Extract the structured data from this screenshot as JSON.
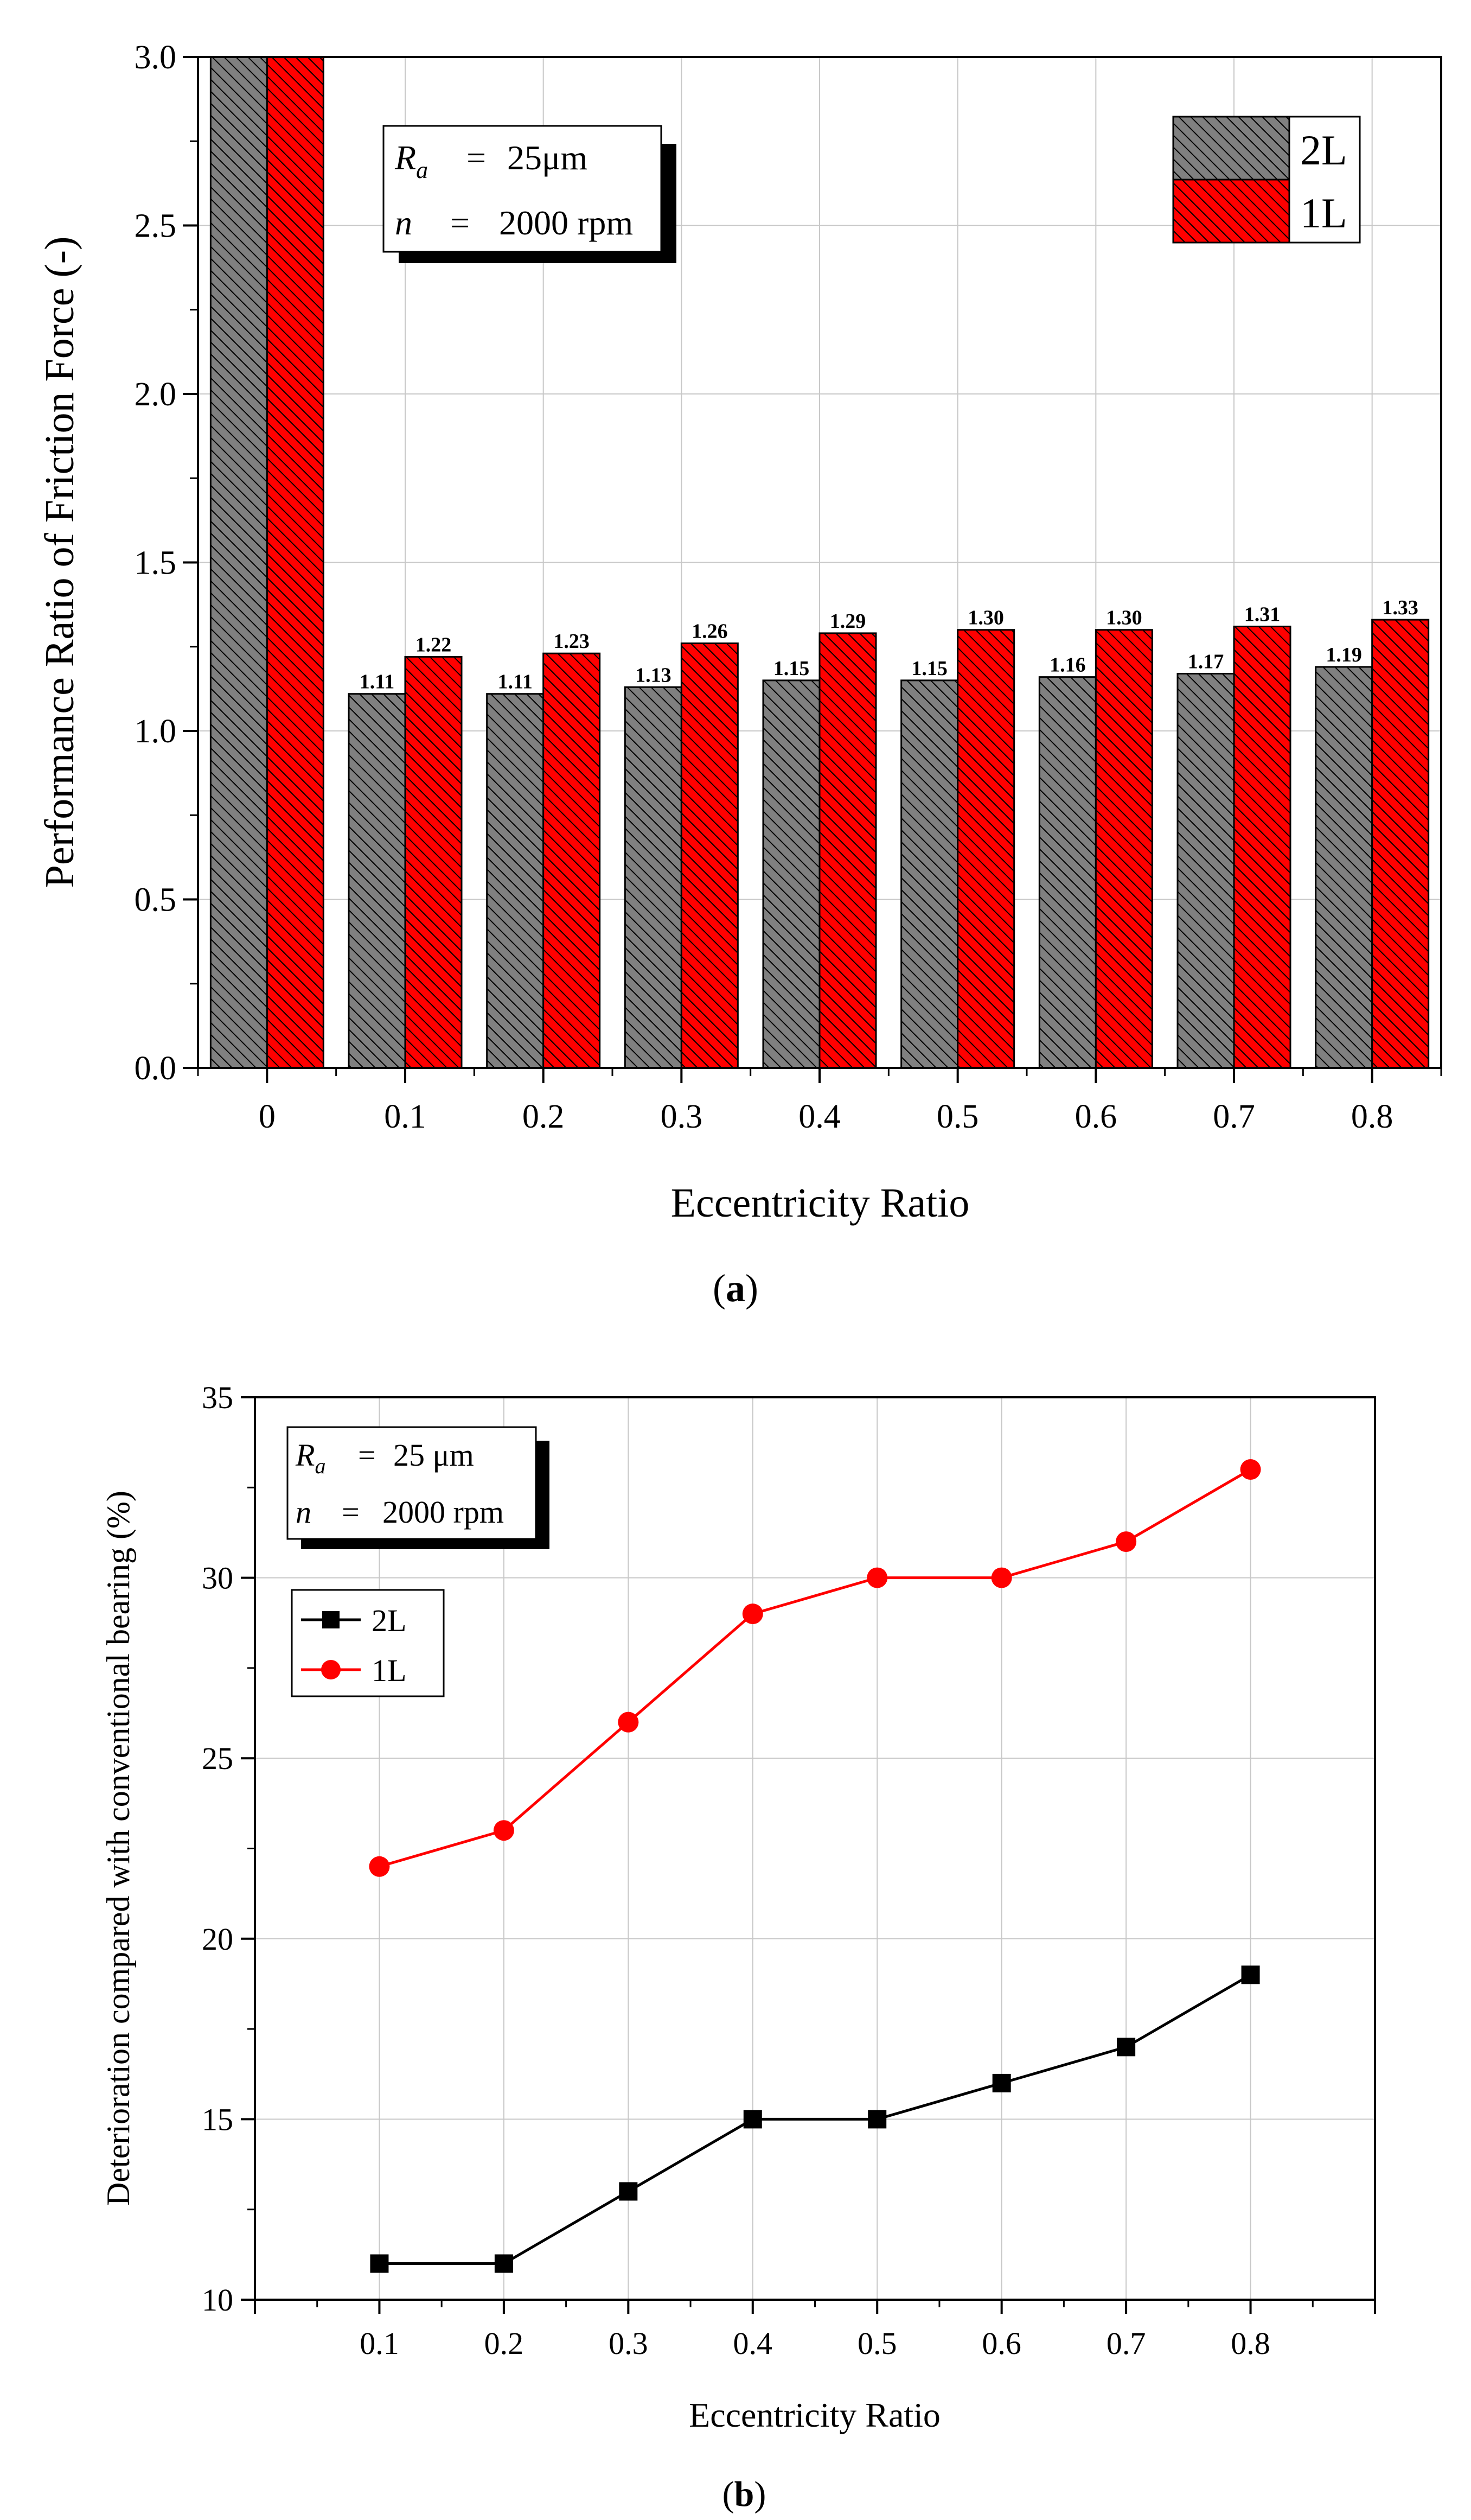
{
  "chart_data": [
    {
      "type": "bar",
      "panel_label": "a",
      "title": "",
      "xlabel": "Eccentricity Ratio",
      "ylabel": "Performance Ratio of Friction Force (-)",
      "ylim": [
        0,
        3.0
      ],
      "yticks": [
        "0.0",
        "0.5",
        "1.0",
        "1.5",
        "2.0",
        "2.5",
        "3.0"
      ],
      "categories": [
        "0",
        "0.1",
        "0.2",
        "0.3",
        "0.4",
        "0.5",
        "0.6",
        "0.7",
        "0.8"
      ],
      "series": [
        {
          "name": "2L",
          "color": "#808080",
          "values": [
            3.0,
            1.11,
            1.11,
            1.13,
            1.15,
            1.15,
            1.16,
            1.17,
            1.19
          ],
          "labels": [
            "",
            "1.11",
            "1.11",
            "1.13",
            "1.15",
            "1.15",
            "1.16",
            "1.17",
            "1.19"
          ]
        },
        {
          "name": "1L",
          "color": "#ff0000",
          "values": [
            3.0,
            1.22,
            1.23,
            1.26,
            1.29,
            1.3,
            1.3,
            1.31,
            1.33
          ],
          "labels": [
            "",
            "1.22",
            "1.23",
            "1.26",
            "1.29",
            "1.30",
            "1.30",
            "1.31",
            "1.33"
          ]
        }
      ],
      "annotation": {
        "ra_symbol": "R",
        "ra_sub": "a",
        "ra_eq": "=",
        "ra_value": "25μm",
        "n_symbol": "n",
        "n_eq": "=",
        "n_value": "2000 rpm"
      },
      "legend_position": "top-right",
      "grid": true
    },
    {
      "type": "line",
      "panel_label": "b",
      "title": "",
      "xlabel": "Eccentricity Ratio",
      "ylabel": "Deterioration compared with conventional bearing (%)",
      "ylim": [
        10,
        35
      ],
      "xlim": [
        0,
        0.9
      ],
      "yticks": [
        "10",
        "15",
        "20",
        "25",
        "30",
        "35"
      ],
      "x": [
        0.1,
        0.2,
        0.3,
        0.4,
        0.5,
        0.6,
        0.7,
        0.8
      ],
      "xtick_labels": [
        "0.1",
        "0.2",
        "0.3",
        "0.4",
        "0.5",
        "0.6",
        "0.7",
        "0.8"
      ],
      "series": [
        {
          "name": "2L",
          "color": "#000000",
          "marker": "square",
          "values": [
            11,
            11,
            13,
            15,
            15,
            16,
            17,
            19
          ]
        },
        {
          "name": "1L",
          "color": "#ff0000",
          "marker": "circle",
          "values": [
            22,
            23,
            26,
            29,
            30,
            30,
            31,
            33
          ]
        }
      ],
      "annotation": {
        "ra_symbol": "R",
        "ra_sub": "a",
        "ra_eq": "=",
        "ra_value": "25 μm",
        "n_symbol": "n",
        "n_eq": "=",
        "n_value": "2000 rpm"
      },
      "legend_position": "upper-left",
      "grid": true
    }
  ]
}
